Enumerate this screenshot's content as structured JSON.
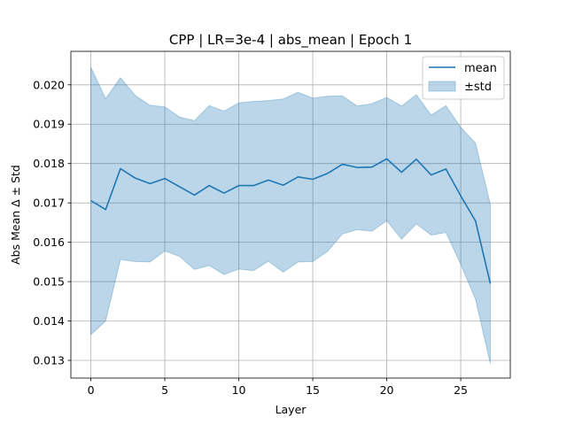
{
  "chart_data": {
    "type": "line",
    "title": "CPP | LR=3e-4 | abs_mean | Epoch 1",
    "xlabel": "Layer",
    "ylabel": "Abs Mean Δ ± Std",
    "xlim": [
      -1.35,
      28.35
    ],
    "ylim": [
      0.01255,
      0.02085
    ],
    "xticks": [
      0,
      5,
      10,
      15,
      20,
      25
    ],
    "xtick_labels": [
      "0",
      "5",
      "10",
      "15",
      "20",
      "25"
    ],
    "yticks": [
      0.013,
      0.014,
      0.015,
      0.016,
      0.017,
      0.018,
      0.019,
      0.02
    ],
    "ytick_labels": [
      "0.013",
      "0.014",
      "0.015",
      "0.016",
      "0.017",
      "0.018",
      "0.019",
      "0.020"
    ],
    "grid": true,
    "legend_position": "upper right",
    "x": [
      0,
      1,
      2,
      3,
      4,
      5,
      6,
      7,
      8,
      9,
      10,
      11,
      12,
      13,
      14,
      15,
      16,
      17,
      18,
      19,
      20,
      21,
      22,
      23,
      24,
      25,
      26,
      27
    ],
    "series": [
      {
        "name": "mean",
        "kind": "line",
        "color": "#1f77b4",
        "values": [
          0.01706,
          0.01683,
          0.01787,
          0.01763,
          0.01749,
          0.01762,
          0.01741,
          0.0172,
          0.01744,
          0.01725,
          0.01744,
          0.01744,
          0.01758,
          0.01745,
          0.01766,
          0.0176,
          0.01775,
          0.01798,
          0.0179,
          0.01791,
          0.01812,
          0.01778,
          0.01811,
          0.01771,
          0.01786,
          0.01718,
          0.01654,
          0.01495
        ]
      },
      {
        "name": "±std",
        "kind": "band",
        "color": "#1f77b4",
        "alpha": 0.3,
        "upper": [
          0.02045,
          0.01965,
          0.02018,
          0.01973,
          0.01948,
          0.01944,
          0.01918,
          0.01909,
          0.01947,
          0.01933,
          0.01954,
          0.01958,
          0.0196,
          0.01964,
          0.01981,
          0.01966,
          0.01971,
          0.01972,
          0.01946,
          0.01952,
          0.01968,
          0.01946,
          0.01975,
          0.01923,
          0.01947,
          0.01892,
          0.01852,
          0.01697
        ],
        "lower": [
          0.01365,
          0.014,
          0.01556,
          0.01551,
          0.0155,
          0.01578,
          0.01564,
          0.01531,
          0.01541,
          0.01518,
          0.01532,
          0.01528,
          0.01552,
          0.01524,
          0.0155,
          0.01551,
          0.01577,
          0.01621,
          0.01632,
          0.01628,
          0.01655,
          0.01608,
          0.01647,
          0.01618,
          0.01625,
          0.01544,
          0.01455,
          0.01292
        ]
      }
    ]
  }
}
